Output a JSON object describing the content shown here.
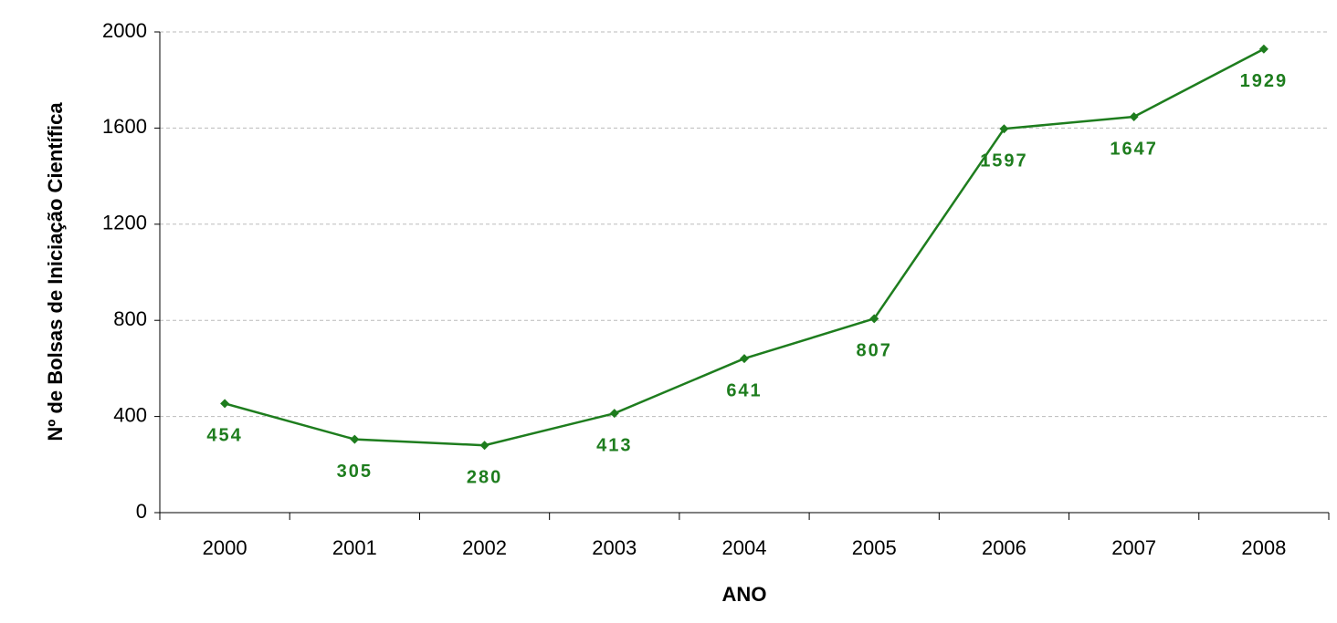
{
  "chart_data": {
    "type": "line",
    "x_label": "ANO",
    "y_label": "Nº de Bolsas de Iniciação Científica",
    "categories": [
      "2000",
      "2001",
      "2002",
      "2003",
      "2004",
      "2005",
      "2006",
      "2007",
      "2008"
    ],
    "values": [
      454,
      305,
      280,
      413,
      641,
      807,
      1597,
      1647,
      1929
    ],
    "color": "#1e7d1e",
    "ylim": [
      0,
      2000
    ],
    "yticks": [
      0,
      400,
      800,
      1200,
      1600,
      2000
    ],
    "grid": true
  }
}
